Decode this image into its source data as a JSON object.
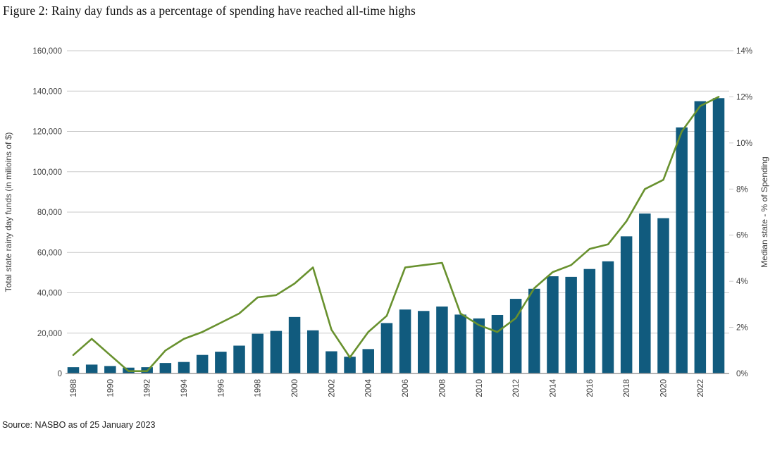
{
  "figure": {
    "title": "Figure 2: Rainy day funds as a percentage of spending have reached all-time highs",
    "source": "Source: NASBO as of 25 January 2023"
  },
  "chart_data": {
    "type": "bar",
    "title": "Figure 2: Rainy day funds as a percentage of spending have reached all-time highs",
    "categories": [
      1988,
      1989,
      1990,
      1991,
      1992,
      1993,
      1994,
      1995,
      1996,
      1997,
      1998,
      1999,
      2000,
      2001,
      2002,
      2003,
      2004,
      2005,
      2006,
      2007,
      2008,
      2009,
      2010,
      2011,
      2012,
      2013,
      2014,
      2015,
      2016,
      2017,
      2018,
      2019,
      2020,
      2021,
      2022,
      2023
    ],
    "series": [
      {
        "name": "Total state rainy day funds (in millions of $)",
        "type": "bar",
        "axis": "left",
        "color": "#115b7e",
        "values": [
          3100,
          4400,
          3700,
          2900,
          3100,
          5200,
          5700,
          9200,
          10800,
          13800,
          19700,
          21100,
          28000,
          21400,
          11000,
          8300,
          12100,
          25000,
          31700,
          31000,
          33200,
          29200,
          27300,
          29000,
          37000,
          42000,
          48200,
          47900,
          51800,
          55600,
          68000,
          79300,
          77000,
          122000,
          135000,
          136500
        ]
      },
      {
        "name": "Median state rainy day funds as % of spending",
        "type": "line",
        "axis": "right",
        "color": "#68912e",
        "values": [
          0.8,
          1.5,
          0.8,
          0.1,
          0.1,
          1.0,
          1.5,
          1.8,
          2.2,
          2.6,
          3.3,
          3.4,
          3.9,
          4.6,
          1.9,
          0.7,
          1.8,
          2.5,
          4.6,
          4.7,
          4.8,
          2.6,
          2.1,
          1.8,
          2.4,
          3.7,
          4.4,
          4.7,
          5.4,
          5.6,
          6.6,
          8.0,
          8.4,
          10.5,
          11.6,
          12.0
        ]
      }
    ],
    "left_axis": {
      "label": "Total state rainy day funds (in milioins of $)",
      "min": 0,
      "max": 160000,
      "step": 20000,
      "tick_labels": [
        "0",
        "20,000",
        "40,000",
        "60,000",
        "80,000",
        "100,000",
        "120,000",
        "140,000",
        "160,000"
      ]
    },
    "right_axis": {
      "label": "Median state  - % of Spending",
      "min": 0,
      "max": 14,
      "step": 2,
      "tick_labels": [
        "0%",
        "2%",
        "4%",
        "6%",
        "8%",
        "10%",
        "12%",
        "14%"
      ]
    },
    "x_axis": {
      "tick_labels": [
        "1988",
        "1990",
        "1992",
        "1994",
        "1996",
        "1998",
        "2000",
        "2002",
        "2004",
        "2006",
        "2008",
        "2010",
        "2012",
        "2014",
        "2016",
        "2018",
        "2020",
        "2022"
      ],
      "label_every": 2
    },
    "grid": true,
    "legend_position": "none"
  },
  "style": {
    "grid_color": "#c9c9c9",
    "axis_color": "#9a9a9a",
    "tick_text_color": "#3f3f3f",
    "bar_color": "#115b7e",
    "line_color": "#68912e"
  }
}
